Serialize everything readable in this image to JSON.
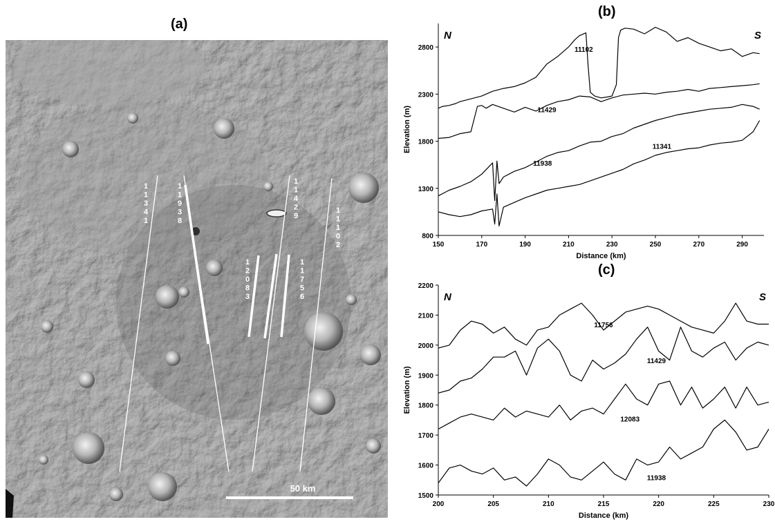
{
  "panels": {
    "a": "(a)",
    "b": "(b)",
    "c": "(c)"
  },
  "image_panel": {
    "track_labels": [
      "11341",
      "11938",
      "12083",
      "11756",
      "11429",
      "11102"
    ],
    "scale_bar_label": "50 km"
  },
  "chart_data": [
    {
      "type": "line",
      "panel": "(b)",
      "xlabel": "Distance (km)",
      "ylabel": "Elevation (m)",
      "xlim": [
        150,
        300
      ],
      "ylim": [
        800,
        3050
      ],
      "xticks": [
        "150",
        "170",
        "190",
        "210",
        "230",
        "250",
        "270",
        "290"
      ],
      "yticks": [
        "800",
        "1300",
        "1800",
        "2300",
        "2800"
      ],
      "corner_labels": {
        "left": "N",
        "right": "S"
      },
      "grid": false,
      "series": [
        {
          "name": "11102",
          "label_at": [
            217,
            2750
          ],
          "x": [
            150,
            152,
            155,
            158,
            160,
            165,
            170,
            175,
            180,
            185,
            190,
            195,
            200,
            205,
            210,
            213,
            215,
            218,
            219,
            220,
            222,
            225,
            228,
            230,
            232,
            233,
            234,
            236,
            240,
            245,
            250,
            255,
            260,
            265,
            270,
            275,
            280,
            285,
            290,
            295,
            298
          ],
          "y": [
            2150,
            2170,
            2180,
            2200,
            2220,
            2250,
            2280,
            2330,
            2360,
            2380,
            2420,
            2480,
            2620,
            2700,
            2800,
            2880,
            2920,
            2950,
            2600,
            2320,
            2280,
            2260,
            2270,
            2280,
            2400,
            2900,
            2980,
            3000,
            2990,
            2940,
            3010,
            2960,
            2860,
            2900,
            2840,
            2800,
            2760,
            2780,
            2700,
            2740,
            2730
          ]
        },
        {
          "name": "11429",
          "label_at": [
            200,
            2110
          ],
          "x": [
            150,
            155,
            160,
            165,
            168,
            170,
            172,
            175,
            180,
            185,
            190,
            195,
            200,
            205,
            210,
            215,
            220,
            225,
            230,
            235,
            240,
            245,
            250,
            255,
            260,
            265,
            270,
            275,
            280,
            285,
            290,
            295,
            298
          ],
          "y": [
            1830,
            1840,
            1880,
            1900,
            2170,
            2180,
            2150,
            2190,
            2150,
            2110,
            2160,
            2120,
            2180,
            2220,
            2240,
            2280,
            2270,
            2220,
            2260,
            2290,
            2300,
            2310,
            2300,
            2320,
            2330,
            2350,
            2330,
            2360,
            2370,
            2380,
            2390,
            2400,
            2410
          ]
        },
        {
          "name": "11938",
          "label_at": [
            198,
            1540
          ],
          "x": [
            150,
            155,
            160,
            165,
            170,
            175,
            176,
            177,
            178,
            180,
            185,
            190,
            195,
            200,
            205,
            210,
            215,
            220,
            225,
            230,
            235,
            240,
            245,
            250,
            255,
            260,
            265,
            270,
            275,
            280,
            285,
            290,
            295,
            298
          ],
          "y": [
            1220,
            1280,
            1320,
            1370,
            1450,
            1570,
            1170,
            1590,
            1350,
            1420,
            1480,
            1520,
            1580,
            1640,
            1680,
            1700,
            1750,
            1790,
            1800,
            1850,
            1880,
            1940,
            1980,
            2020,
            2050,
            2080,
            2100,
            2120,
            2140,
            2150,
            2160,
            2190,
            2170,
            2140
          ]
        },
        {
          "name": "11341",
          "label_at": [
            253,
            1720
          ],
          "x": [
            150,
            155,
            160,
            165,
            170,
            175,
            176,
            177,
            178,
            180,
            185,
            190,
            195,
            200,
            205,
            210,
            215,
            220,
            225,
            230,
            235,
            240,
            245,
            250,
            255,
            260,
            265,
            270,
            275,
            280,
            285,
            290,
            295,
            298
          ],
          "y": [
            1050,
            1020,
            1000,
            1020,
            1060,
            1080,
            920,
            1240,
            900,
            1100,
            1150,
            1200,
            1240,
            1280,
            1300,
            1320,
            1340,
            1380,
            1420,
            1460,
            1500,
            1560,
            1600,
            1650,
            1680,
            1700,
            1720,
            1730,
            1760,
            1780,
            1790,
            1810,
            1900,
            2020
          ]
        }
      ]
    },
    {
      "type": "line",
      "panel": "(c)",
      "xlabel": "Distance (km)",
      "ylabel": "Elevation (m)",
      "xlim": [
        200,
        230
      ],
      "ylim": [
        1500,
        2200
      ],
      "xticks": [
        "200",
        "205",
        "210",
        "215",
        "220",
        "225",
        "230"
      ],
      "yticks": [
        "1500",
        "1600",
        "1700",
        "1800",
        "1900",
        "2000",
        "2100",
        "2200"
      ],
      "corner_labels": {
        "left": "N",
        "right": "S"
      },
      "grid": false,
      "series": [
        {
          "name": "11756",
          "label_at": [
            215.0,
            2060
          ],
          "x": [
            200,
            201,
            202,
            203,
            204,
            205,
            206,
            207,
            208,
            209,
            210,
            211,
            212,
            213,
            214,
            215,
            216,
            217,
            218,
            219,
            220,
            221,
            222,
            223,
            224,
            225,
            226,
            227,
            228,
            229,
            230
          ],
          "y": [
            1990,
            2000,
            2050,
            2080,
            2070,
            2040,
            2060,
            2020,
            2000,
            2050,
            2060,
            2100,
            2120,
            2140,
            2100,
            2050,
            2080,
            2110,
            2120,
            2130,
            2120,
            2100,
            2080,
            2060,
            2050,
            2040,
            2080,
            2140,
            2080,
            2070,
            2070
          ]
        },
        {
          "name": "11429",
          "label_at": [
            219.8,
            1940
          ],
          "x": [
            200,
            201,
            202,
            203,
            204,
            205,
            206,
            207,
            208,
            209,
            210,
            211,
            212,
            213,
            214,
            215,
            216,
            217,
            218,
            219,
            220,
            221,
            222,
            223,
            224,
            225,
            226,
            227,
            228,
            229,
            230
          ],
          "y": [
            1840,
            1850,
            1880,
            1890,
            1920,
            1960,
            1960,
            1980,
            1900,
            1990,
            2020,
            1980,
            1900,
            1880,
            1950,
            1920,
            1940,
            1970,
            2020,
            2060,
            1980,
            1950,
            2060,
            1980,
            1960,
            1990,
            2010,
            1950,
            1990,
            2010,
            2000
          ]
        },
        {
          "name": "12083",
          "label_at": [
            217.4,
            1745
          ],
          "x": [
            200,
            201,
            202,
            203,
            204,
            205,
            206,
            207,
            208,
            209,
            210,
            211,
            212,
            213,
            214,
            215,
            216,
            217,
            218,
            219,
            220,
            221,
            222,
            223,
            224,
            225,
            226,
            227,
            228,
            229,
            230
          ],
          "y": [
            1720,
            1740,
            1760,
            1770,
            1760,
            1750,
            1790,
            1760,
            1780,
            1770,
            1760,
            1800,
            1750,
            1780,
            1790,
            1770,
            1820,
            1870,
            1820,
            1800,
            1870,
            1880,
            1800,
            1860,
            1790,
            1820,
            1860,
            1790,
            1860,
            1800,
            1810
          ]
        },
        {
          "name": "11938",
          "label_at": [
            219.8,
            1550
          ],
          "x": [
            200,
            201,
            202,
            203,
            204,
            205,
            206,
            207,
            208,
            209,
            210,
            211,
            212,
            213,
            214,
            215,
            216,
            217,
            218,
            219,
            220,
            221,
            222,
            223,
            224,
            225,
            226,
            227,
            228,
            229,
            230
          ],
          "y": [
            1540,
            1590,
            1600,
            1580,
            1570,
            1590,
            1550,
            1560,
            1530,
            1570,
            1620,
            1600,
            1560,
            1550,
            1580,
            1610,
            1570,
            1550,
            1620,
            1600,
            1610,
            1660,
            1620,
            1640,
            1660,
            1720,
            1750,
            1710,
            1650,
            1660,
            1720
          ]
        }
      ]
    }
  ]
}
